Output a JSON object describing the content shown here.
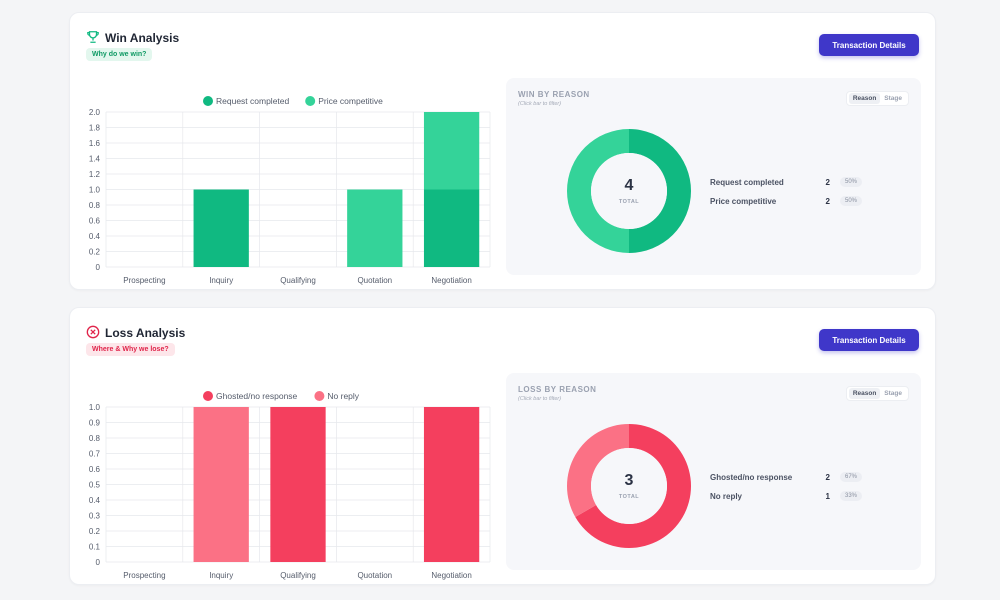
{
  "win": {
    "title": "Win Analysis",
    "subtitle": "Why do we win?",
    "button_label": "Transaction Details",
    "chart_data": {
      "type": "bar",
      "stacked": true,
      "categories": [
        "Prospecting",
        "Inquiry",
        "Qualifying",
        "Quotation",
        "Negotiation"
      ],
      "series": [
        {
          "name": "Request completed",
          "color": "#10b981",
          "values": [
            0,
            1,
            0,
            0,
            1
          ]
        },
        {
          "name": "Price competitive",
          "color": "#34d399",
          "values": [
            0,
            0,
            0,
            1,
            1
          ]
        }
      ],
      "yticks": [
        "2.0",
        "1.8",
        "1.6",
        "1.4",
        "1.2",
        "1.0",
        "0.8",
        "0.6",
        "0.4",
        "0.2",
        "0"
      ],
      "ylim": [
        0,
        2
      ],
      "grid": true,
      "legend": "top-center"
    },
    "panel": {
      "title": "WIN BY REASON",
      "subtitle": "(Click bar to filter)",
      "toggle_reason": "Reason",
      "toggle_stage": "Stage",
      "total": "4",
      "total_label": "TOTAL",
      "rows": [
        {
          "label": "Request completed",
          "count": "2",
          "pct": "50%",
          "color": "#10b981",
          "value": 2
        },
        {
          "label": "Price competitive",
          "count": "2",
          "pct": "50%",
          "color": "#34d399",
          "value": 2
        }
      ]
    }
  },
  "loss": {
    "title": "Loss Analysis",
    "subtitle": "Where & Why we lose?",
    "button_label": "Transaction Details",
    "chart_data": {
      "type": "bar",
      "stacked": true,
      "categories": [
        "Prospecting",
        "Inquiry",
        "Qualifying",
        "Quotation",
        "Negotiation"
      ],
      "series": [
        {
          "name": "Ghosted/no response",
          "color": "#f43f5e",
          "values": [
            0,
            0,
            1,
            0,
            1
          ]
        },
        {
          "name": "No reply",
          "color": "#fb7185",
          "values": [
            0,
            1,
            0,
            0,
            0
          ]
        }
      ],
      "yticks": [
        "1.0",
        "0.9",
        "0.8",
        "0.7",
        "0.6",
        "0.5",
        "0.4",
        "0.3",
        "0.2",
        "0.1",
        "0"
      ],
      "ylim": [
        0,
        1
      ],
      "grid": true,
      "legend": "top-center"
    },
    "panel": {
      "title": "LOSS BY REASON",
      "subtitle": "(Click bar to filter)",
      "toggle_reason": "Reason",
      "toggle_stage": "Stage",
      "total": "3",
      "total_label": "TOTAL",
      "rows": [
        {
          "label": "Ghosted/no response",
          "count": "2",
          "pct": "67%",
          "color": "#f43f5e",
          "value": 2
        },
        {
          "label": "No reply",
          "count": "1",
          "pct": "33%",
          "color": "#fb7185",
          "value": 1
        }
      ]
    }
  }
}
